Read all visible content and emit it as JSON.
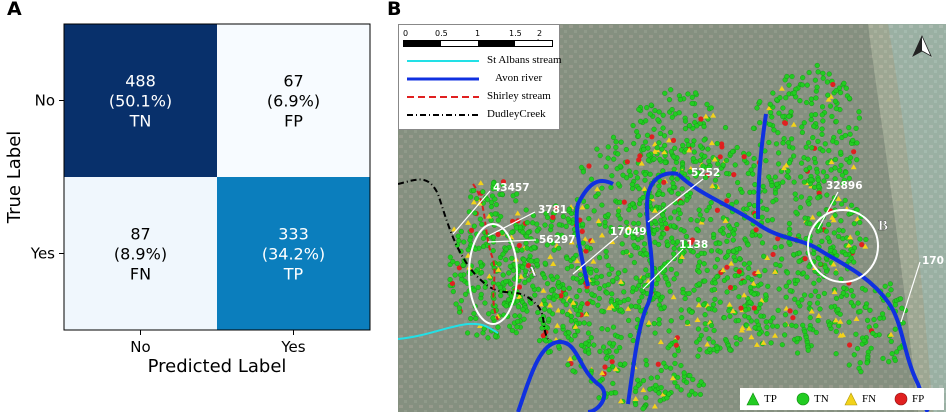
{
  "panels": {
    "a": "A",
    "b": "B"
  },
  "chart_data": [
    {
      "type": "heatmap",
      "title": "",
      "xlabel": "Predicted Label",
      "ylabel": "True Label",
      "x_categories": [
        "No",
        "Yes"
      ],
      "y_categories": [
        "No",
        "Yes"
      ],
      "cells": [
        {
          "row": 0,
          "col": 0,
          "count": "488",
          "pct": "(50.1%)",
          "tag": "TN",
          "value": 488
        },
        {
          "row": 0,
          "col": 1,
          "count": "67",
          "pct": "(6.9%)",
          "tag": "FP",
          "value": 67
        },
        {
          "row": 1,
          "col": 0,
          "count": "87",
          "pct": "(8.9%)",
          "tag": "FN",
          "value": 87
        },
        {
          "row": 1,
          "col": 1,
          "count": "333",
          "pct": "(34.2%)",
          "tag": "TP",
          "value": 333
        }
      ],
      "colormap": "Blues",
      "colors": {
        "high": "#08306b",
        "mid": "#0b85c4",
        "low1": "#e9f2fa",
        "low2": "#f7fbff"
      }
    }
  ],
  "map": {
    "scalebar": {
      "ticks": [
        "0",
        "0.5",
        "1",
        "1.5",
        "2 km"
      ]
    },
    "north_arrow": "north-arrow-icon",
    "line_legend": [
      {
        "label": "St Albans stream",
        "color": "#22e0e6",
        "style": "solid"
      },
      {
        "label": "Avon river",
        "color": "#1030e0",
        "style": "solid"
      },
      {
        "label": "Shirley stream",
        "color": "#e02020",
        "style": "dashed"
      },
      {
        "label": "DudleyCreek",
        "color": "#000000",
        "style": "dashdot"
      }
    ],
    "point_legend": [
      {
        "label": "TP",
        "color": "#22cc22",
        "shape": "triangle"
      },
      {
        "label": "TN",
        "color": "#22cc22",
        "shape": "circle"
      },
      {
        "label": "FN",
        "color": "#f2d21a",
        "shape": "triangle"
      },
      {
        "label": "FP",
        "color": "#e02020",
        "shape": "circle"
      }
    ],
    "annotations": [
      "43457",
      "3781",
      "56297",
      "5252",
      "17049",
      "1138",
      "32896",
      "170"
    ],
    "regions": [
      "A",
      "B"
    ]
  }
}
